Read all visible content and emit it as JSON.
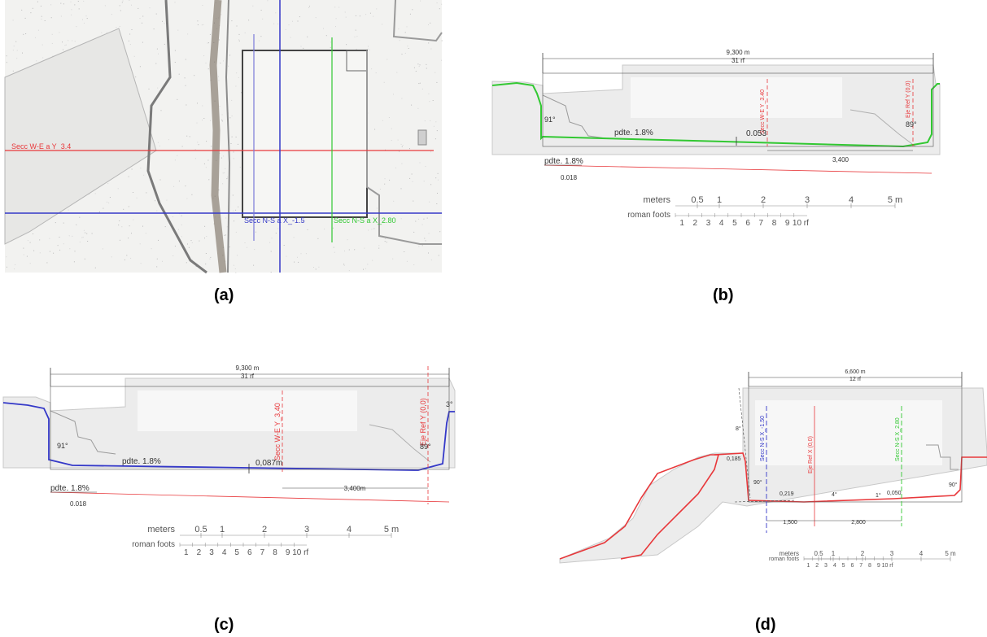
{
  "captions": {
    "a": "(a)",
    "b": "(b)",
    "c": "(c)",
    "d": "(d)"
  },
  "panel_a": {
    "label_we": "Secc W-E a Y_3.4",
    "label_ns1": "Secc N-S a X_-1.5",
    "label_ns2": "Secc N-S a X_2.80"
  },
  "panel_b": {
    "width_m": "9,300 m",
    "width_rf": "31 rf",
    "axis_ref": "Eje Ref Y (0,0)",
    "section": "Secc W-E Y_3.40",
    "angle_left": "91°",
    "angle_right": "89°",
    "slope_inner": "pdte. 1.8%",
    "slope_outer": "pdte. 1.8%",
    "slope_value": "0.018",
    "drop": "0.053",
    "dist": "3,400",
    "scale_m_label": "meters",
    "scale_m_ticks": [
      "0.5",
      "1",
      "2",
      "3",
      "4",
      "5 m"
    ],
    "scale_rf_label": "roman foots",
    "scale_rf_ticks": [
      "1",
      "2",
      "3",
      "4",
      "5",
      "6",
      "7",
      "8",
      "9",
      "10 rf"
    ]
  },
  "panel_c": {
    "width_m": "9,300 m",
    "width_rf": "31 rf",
    "axis_ref": "Eje Ref Y (0,0)",
    "section": "Secc W-E Y_3,40",
    "angle_left": "91°",
    "angle_right": "89°",
    "angle_top": "3°",
    "slope_inner": "pdte. 1.8%",
    "slope_outer": "pdte. 1.8%",
    "slope_value": "0.018",
    "drop": "0,087m",
    "dist": "3,400m",
    "scale_m_label": "meters",
    "scale_m_ticks": [
      "0.5",
      "1",
      "2",
      "3",
      "4",
      "5 m"
    ],
    "scale_rf_label": "roman foots",
    "scale_rf_ticks": [
      "1",
      "2",
      "3",
      "4",
      "5",
      "6",
      "7",
      "8",
      "9",
      "10 rf"
    ]
  },
  "panel_d": {
    "width_m": "6,600 m",
    "width_rf": "12 rf",
    "section_ns1": "Secc N-S X_-1.50",
    "axis_ref": "Eje Ref X (0,0)",
    "section_ns2": "Secc N-S X_2.80",
    "angle_top": "8°",
    "angle_left": "90°",
    "angle_right": "90°",
    "angle_a": "4°",
    "angle_b": "1°",
    "height": "0,185",
    "drop_a": "0,219",
    "drop_b": "0,050",
    "dist_a": "1,500",
    "dist_b": "2,800",
    "scale_m_label": "meters",
    "scale_m_ticks": [
      "0.5",
      "1",
      "2",
      "3",
      "4",
      "5 m"
    ],
    "scale_rf_label": "roman foots",
    "scale_rf_ticks": [
      "1",
      "2",
      "3",
      "4",
      "5",
      "6",
      "7",
      "8",
      "9",
      "10 rf"
    ]
  },
  "colors": {
    "red": "#e8383b",
    "blue": "#3438c8",
    "green": "#32c832",
    "dark": "#333333"
  }
}
